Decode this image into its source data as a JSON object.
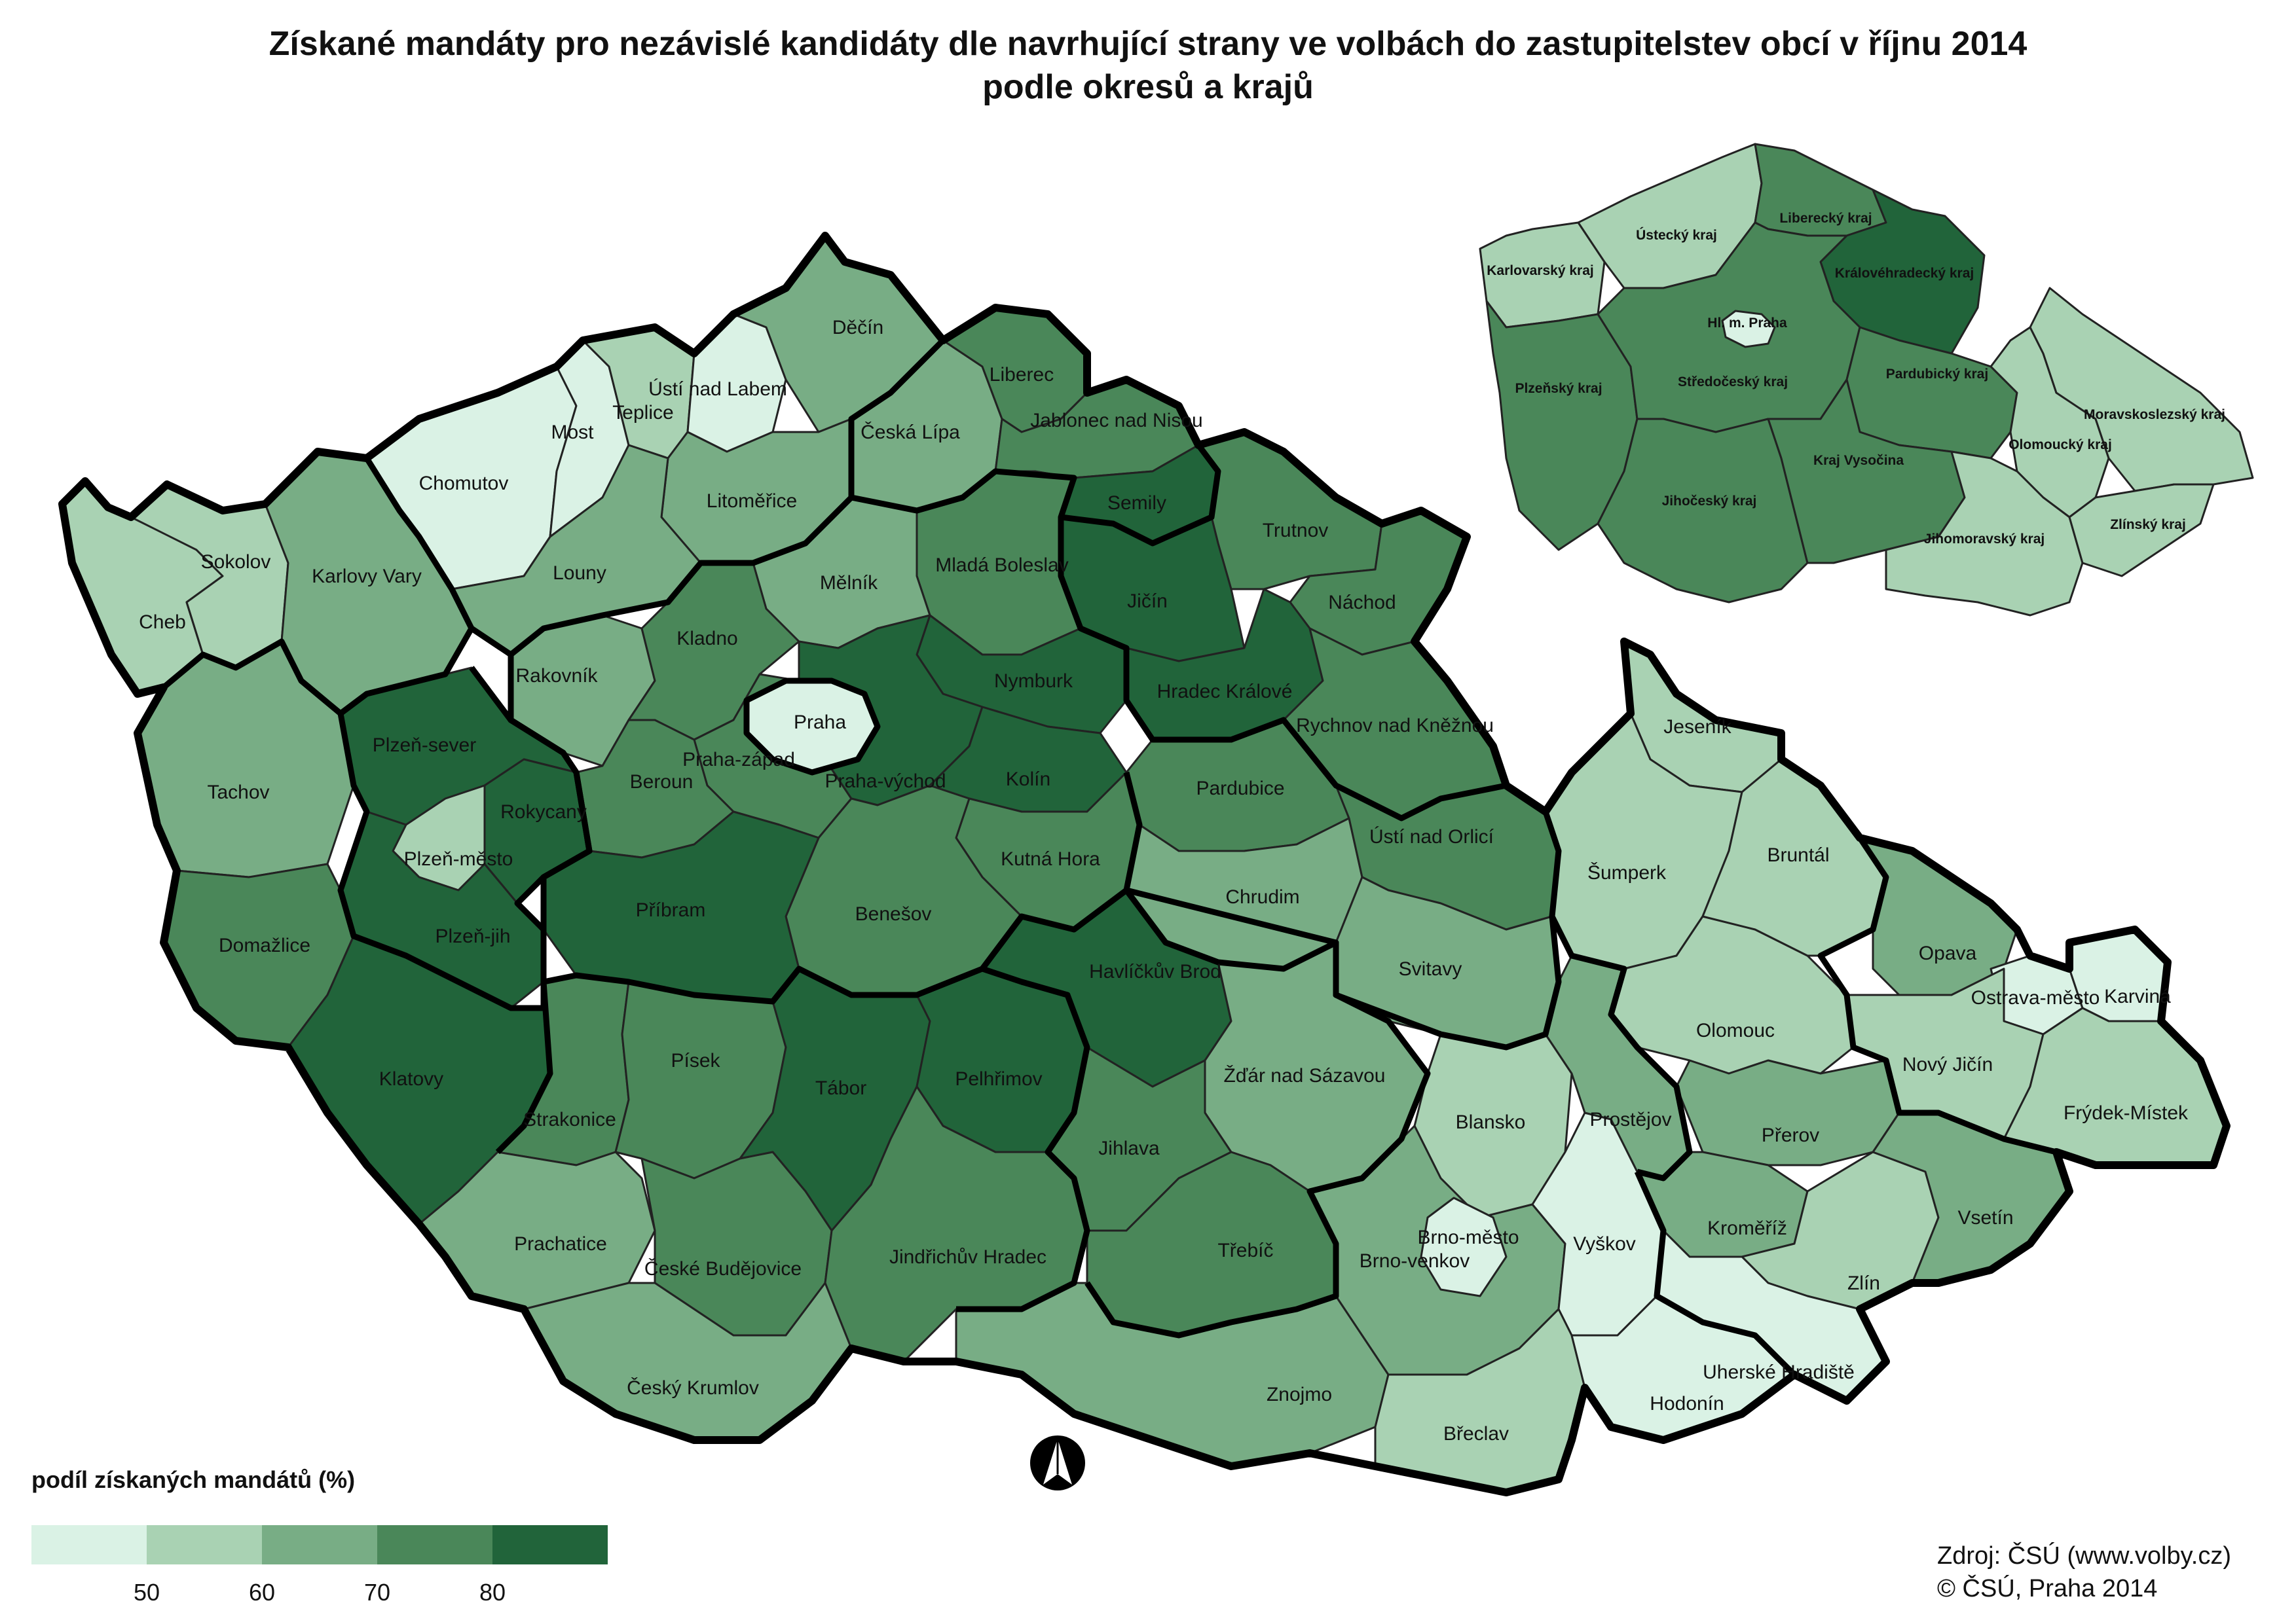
{
  "title": {
    "line1": "Získané mandáty pro nezávislé kandidáty dle navrhující strany ve volbách do zastupitelstev obcí v říjnu 2014",
    "line2": "podle okresů a krajů"
  },
  "colors": {
    "c1": "#daf2e5",
    "c2": "#a9d2b3",
    "c3": "#78ad85",
    "c4": "#4a8759",
    "c5": "#21643a"
  },
  "districts": [
    {
      "name": "Cheb",
      "class": 2
    },
    {
      "name": "Sokolov",
      "class": 2
    },
    {
      "name": "Karlovy Vary",
      "class": 3
    },
    {
      "name": "Chomutov",
      "class": 1
    },
    {
      "name": "Most",
      "class": 1
    },
    {
      "name": "Teplice",
      "class": 2
    },
    {
      "name": "Ústí nad Labem",
      "class": 1
    },
    {
      "name": "Děčín",
      "class": 3
    },
    {
      "name": "Litoměřice",
      "class": 3
    },
    {
      "name": "Louny",
      "class": 3
    },
    {
      "name": "Česká Lípa",
      "class": 3
    },
    {
      "name": "Liberec",
      "class": 4
    },
    {
      "name": "Jablonec nad Nisou",
      "class": 4
    },
    {
      "name": "Semily",
      "class": 5
    },
    {
      "name": "Trutnov",
      "class": 4
    },
    {
      "name": "Náchod",
      "class": 4
    },
    {
      "name": "Jičín",
      "class": 5
    },
    {
      "name": "Hradec Králové",
      "class": 5
    },
    {
      "name": "Rychnov nad Kněžnou",
      "class": 4
    },
    {
      "name": "Mladá Boleslav",
      "class": 4
    },
    {
      "name": "Mělník",
      "class": 3
    },
    {
      "name": "Rakovník",
      "class": 3
    },
    {
      "name": "Kladno",
      "class": 4
    },
    {
      "name": "Praha",
      "class": 1
    },
    {
      "name": "Nymburk",
      "class": 5
    },
    {
      "name": "Praha-západ",
      "class": 4
    },
    {
      "name": "Praha-východ",
      "class": 5
    },
    {
      "name": "Kolín",
      "class": 5
    },
    {
      "name": "Beroun",
      "class": 4
    },
    {
      "name": "Kutná Hora",
      "class": 4
    },
    {
      "name": "Benešov",
      "class": 4
    },
    {
      "name": "Příbram",
      "class": 5
    },
    {
      "name": "Tachov",
      "class": 3
    },
    {
      "name": "Plzeň-sever",
      "class": 5
    },
    {
      "name": "Rokycany",
      "class": 5
    },
    {
      "name": "Plzeň-město",
      "class": 2
    },
    {
      "name": "Plzeň-jih",
      "class": 5
    },
    {
      "name": "Domažlice",
      "class": 4
    },
    {
      "name": "Klatovy",
      "class": 5
    },
    {
      "name": "Strakonice",
      "class": 4
    },
    {
      "name": "Písek",
      "class": 4
    },
    {
      "name": "Tábor",
      "class": 5
    },
    {
      "name": "Pelhřimov",
      "class": 5
    },
    {
      "name": "Prachatice",
      "class": 3
    },
    {
      "name": "České Budějovice",
      "class": 4
    },
    {
      "name": "Jindřichův Hradec",
      "class": 4
    },
    {
      "name": "Český Krumlov",
      "class": 3
    },
    {
      "name": "Pardubice",
      "class": 4
    },
    {
      "name": "Chrudim",
      "class": 3
    },
    {
      "name": "Ústí nad Orlicí",
      "class": 4
    },
    {
      "name": "Svitavy",
      "class": 3
    },
    {
      "name": "Havlíčkův Brod",
      "class": 5
    },
    {
      "name": "Žďár nad Sázavou",
      "class": 3
    },
    {
      "name": "Jihlava",
      "class": 4
    },
    {
      "name": "Třebíč",
      "class": 4
    },
    {
      "name": "Znojmo",
      "class": 3
    },
    {
      "name": "Blansko",
      "class": 2
    },
    {
      "name": "Brno-město",
      "class": 1
    },
    {
      "name": "Brno-venkov",
      "class": 3
    },
    {
      "name": "Vyškov",
      "class": 1
    },
    {
      "name": "Břeclav",
      "class": 2
    },
    {
      "name": "Hodonín",
      "class": 1
    },
    {
      "name": "Jeseník",
      "class": 2
    },
    {
      "name": "Šumperk",
      "class": 2
    },
    {
      "name": "Bruntál",
      "class": 2
    },
    {
      "name": "Olomouc",
      "class": 2
    },
    {
      "name": "Prostějov",
      "class": 3
    },
    {
      "name": "Přerov",
      "class": 3
    },
    {
      "name": "Kroměříž",
      "class": 3
    },
    {
      "name": "Zlín",
      "class": 2
    },
    {
      "name": "Uherské Hradiště",
      "class": 1
    },
    {
      "name": "Vsetín",
      "class": 3
    },
    {
      "name": "Opava",
      "class": 3
    },
    {
      "name": "Ostrava-město",
      "class": 1
    },
    {
      "name": "Karviná",
      "class": 1
    },
    {
      "name": "Nový Jičín",
      "class": 2
    },
    {
      "name": "Frýdek-Místek",
      "class": 2
    }
  ],
  "regions": [
    {
      "name": "Karlovarský kraj",
      "class": 2
    },
    {
      "name": "Ústecký kraj",
      "class": 2
    },
    {
      "name": "Liberecký kraj",
      "class": 4
    },
    {
      "name": "Královéhradecký kraj",
      "class": 5
    },
    {
      "name": "Hl. m. Praha",
      "class": 1
    },
    {
      "name": "Plzeňský kraj",
      "class": 4
    },
    {
      "name": "Středočeský kraj",
      "class": 4
    },
    {
      "name": "Pardubický kraj",
      "class": 4
    },
    {
      "name": "Jihočeský kraj",
      "class": 4
    },
    {
      "name": "Kraj Vysočina",
      "class": 4
    },
    {
      "name": "Olomoucký kraj",
      "class": 2
    },
    {
      "name": "Moravskoslezský kraj",
      "class": 2
    },
    {
      "name": "Jihomoravský kraj",
      "class": 2
    },
    {
      "name": "Zlínský kraj",
      "class": 2
    }
  ],
  "legend": {
    "title": "podíl získaných mandátů (%)",
    "ticks": [
      "50",
      "60",
      "70",
      "80"
    ]
  },
  "source": {
    "line1": "Zdroj: ČSÚ (www.volby.cz)",
    "line2": "© ČSÚ, Praha 2014"
  }
}
